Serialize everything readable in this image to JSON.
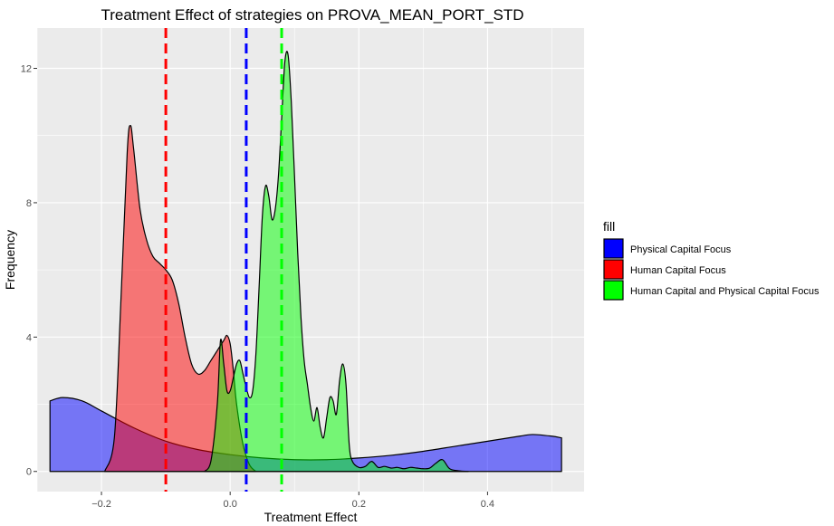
{
  "chart_data": {
    "type": "area",
    "title": "Treatment Effect of strategies on PROVA_MEAN_PORT_STD",
    "xlabel": "Treatment Effect",
    "ylabel": "Frequency",
    "xlim": [
      -0.3,
      0.55
    ],
    "ylim": [
      -0.6,
      13.2
    ],
    "x_ticks": [
      -0.2,
      0.0,
      0.2,
      0.4
    ],
    "x_tick_labels": [
      "−0.2",
      "0.0",
      "0.2",
      "0.4"
    ],
    "y_ticks": [
      0,
      4,
      8,
      12
    ],
    "y_tick_labels": [
      "0",
      "4",
      "8",
      "12"
    ],
    "grid": true,
    "legend": {
      "title": "fill",
      "position": "right"
    },
    "series": [
      {
        "name": "Physical Capital Focus",
        "color": "#0000ff",
        "mean_line": 0.025,
        "x": [
          -0.28,
          -0.26,
          -0.23,
          -0.2,
          -0.15,
          -0.1,
          -0.05,
          0.0,
          0.05,
          0.1,
          0.15,
          0.2,
          0.25,
          0.3,
          0.35,
          0.4,
          0.45,
          0.47,
          0.5,
          0.515
        ],
        "y": [
          2.1,
          2.2,
          2.1,
          1.8,
          1.3,
          0.9,
          0.65,
          0.5,
          0.4,
          0.35,
          0.35,
          0.4,
          0.48,
          0.6,
          0.75,
          0.9,
          1.05,
          1.1,
          1.05,
          1.0
        ]
      },
      {
        "name": "Human Capital Focus",
        "color": "#ff0000",
        "mean_line": -0.1,
        "x": [
          -0.195,
          -0.18,
          -0.17,
          -0.16,
          -0.155,
          -0.15,
          -0.14,
          -0.13,
          -0.12,
          -0.11,
          -0.1,
          -0.09,
          -0.08,
          -0.07,
          -0.06,
          -0.05,
          -0.04,
          -0.03,
          -0.02,
          -0.01,
          -0.005,
          0.0,
          0.005,
          0.01,
          0.02,
          0.03,
          0.04
        ],
        "y": [
          0,
          1.0,
          5.0,
          9.5,
          10.3,
          9.6,
          7.8,
          6.9,
          6.4,
          6.2,
          6.0,
          5.7,
          5.0,
          4.0,
          3.2,
          2.9,
          3.0,
          3.3,
          3.6,
          3.9,
          4.05,
          3.8,
          3.0,
          2.0,
          0.8,
          0.2,
          0
        ]
      },
      {
        "name": "Human Capital and Physical Capital Focus",
        "color": "#00ff00",
        "mean_line": 0.08,
        "x": [
          -0.04,
          -0.03,
          -0.02,
          -0.015,
          -0.01,
          -0.005,
          0.0,
          0.005,
          0.01,
          0.015,
          0.02,
          0.025,
          0.03,
          0.035,
          0.04,
          0.045,
          0.05,
          0.055,
          0.06,
          0.065,
          0.07,
          0.075,
          0.08,
          0.085,
          0.09,
          0.095,
          0.1,
          0.105,
          0.11,
          0.115,
          0.12,
          0.125,
          0.13,
          0.135,
          0.14,
          0.145,
          0.15,
          0.155,
          0.16,
          0.165,
          0.17,
          0.175,
          0.18,
          0.185,
          0.19,
          0.2,
          0.21,
          0.22,
          0.23,
          0.24,
          0.25,
          0.26,
          0.27,
          0.28,
          0.29,
          0.3,
          0.31,
          0.32,
          0.33,
          0.34,
          0.35,
          0.37
        ],
        "y": [
          0,
          0.3,
          2.0,
          3.9,
          3.2,
          2.4,
          2.4,
          2.8,
          3.2,
          3.3,
          2.9,
          2.5,
          2.2,
          2.4,
          3.5,
          5.5,
          7.6,
          8.5,
          8.2,
          7.5,
          7.8,
          8.8,
          10.5,
          12.2,
          12.4,
          11.0,
          8.8,
          6.5,
          4.6,
          3.3,
          2.6,
          1.9,
          1.5,
          1.9,
          1.3,
          1.0,
          1.6,
          2.2,
          2.1,
          1.7,
          2.7,
          3.2,
          2.6,
          0.8,
          0.3,
          0.12,
          0.15,
          0.3,
          0.12,
          0.15,
          0.1,
          0.12,
          0.08,
          0.12,
          0.1,
          0.08,
          0.1,
          0.25,
          0.35,
          0.1,
          0.03,
          0
        ]
      }
    ]
  }
}
